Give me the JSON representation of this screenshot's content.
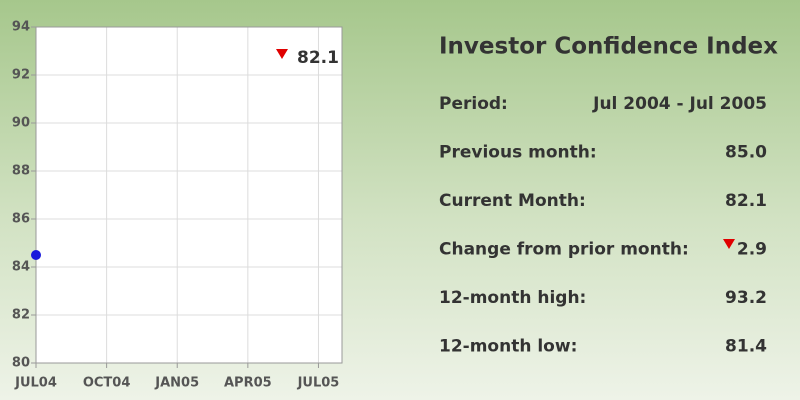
{
  "chart_data": {
    "type": "scatter",
    "x": [
      "2004-07"
    ],
    "series": [
      {
        "color": "#1a1adc",
        "values": [
          84.5
        ]
      }
    ],
    "xlim": [
      "2004-07",
      "2005-08"
    ],
    "xticks": [
      {
        "value": "2004-07",
        "label": "JUL04"
      },
      {
        "value": "2004-10",
        "label": "OCT04"
      },
      {
        "value": "2005-01",
        "label": "JAN05"
      },
      {
        "value": "2005-04",
        "label": "APR05"
      },
      {
        "value": "2005-07",
        "label": "JUL05"
      }
    ],
    "ylim": [
      80,
      94
    ],
    "yticks": [
      80,
      82,
      84,
      86,
      88,
      90,
      92,
      94
    ],
    "grid": true,
    "annotation": "82.1"
  },
  "panel": {
    "title": "Investor Confidence Index",
    "rows": [
      {
        "label": "Period:",
        "value": "Jul 2004 - Jul 2005"
      },
      {
        "label": "Previous month:",
        "value": "85.0"
      },
      {
        "label": "Current Month:",
        "value": "82.1"
      },
      {
        "label": "Change from prior month:",
        "value": "2.9"
      },
      {
        "label": "12-month high:",
        "value": "93.2"
      },
      {
        "label": "12-month low:",
        "value": "81.4"
      }
    ]
  }
}
